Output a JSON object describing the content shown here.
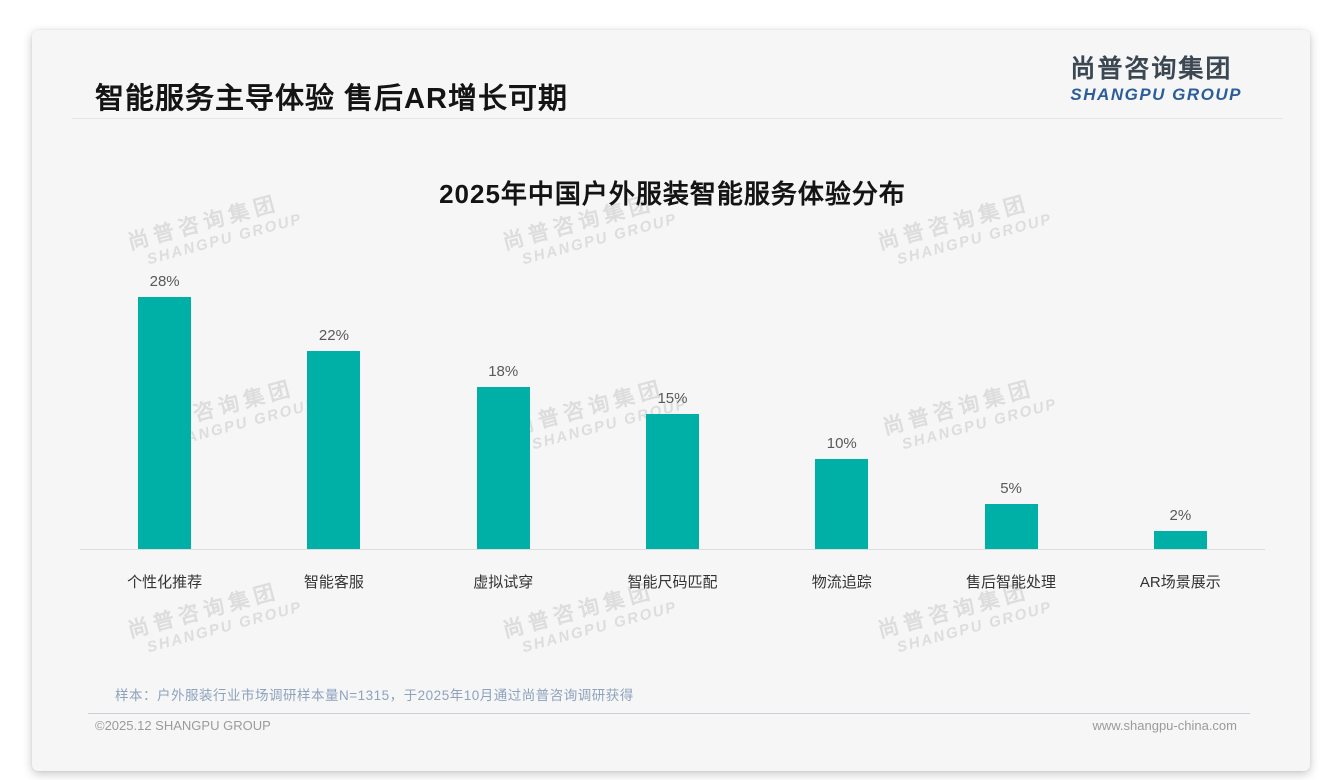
{
  "header": {
    "title": "智能服务主导体验 售后AR增长可期"
  },
  "logo": {
    "name_cn": "尚普咨询集团",
    "name_en": "SHANGPU GROUP"
  },
  "watermark": {
    "line1": "尚普咨询集团",
    "line2": "SHANGPU GROUP"
  },
  "note": "样本：户外服装行业市场调研样本量N=1315，于2025年10月通过尚普咨询调研获得",
  "footer": {
    "copyright": "©2025.12 SHANGPU GROUP",
    "website": "www.shangpu-china.com"
  },
  "colors": {
    "bar": "#00b0a6",
    "logo_en_blue": "#2b5e99",
    "logo_cn_dark": "#3b4753",
    "watermark_gray": "#dddddd"
  },
  "chart_data": {
    "type": "bar",
    "title": "2025年中国户外服装智能服务体验分布",
    "categories": [
      "个性化推荐",
      "智能客服",
      "虚拟试穿",
      "智能尺码匹配",
      "物流追踪",
      "售后智能处理",
      "AR场景展示"
    ],
    "values": [
      28,
      22,
      18,
      15,
      10,
      5,
      2
    ],
    "data_labels": [
      "28%",
      "22%",
      "18%",
      "15%",
      "10%",
      "5%",
      "2%"
    ],
    "unit": "%",
    "xlabel": "",
    "ylabel": "",
    "ylim": [
      0,
      30
    ],
    "grid": false,
    "legend": false,
    "bar_color": "#00b0a6"
  }
}
